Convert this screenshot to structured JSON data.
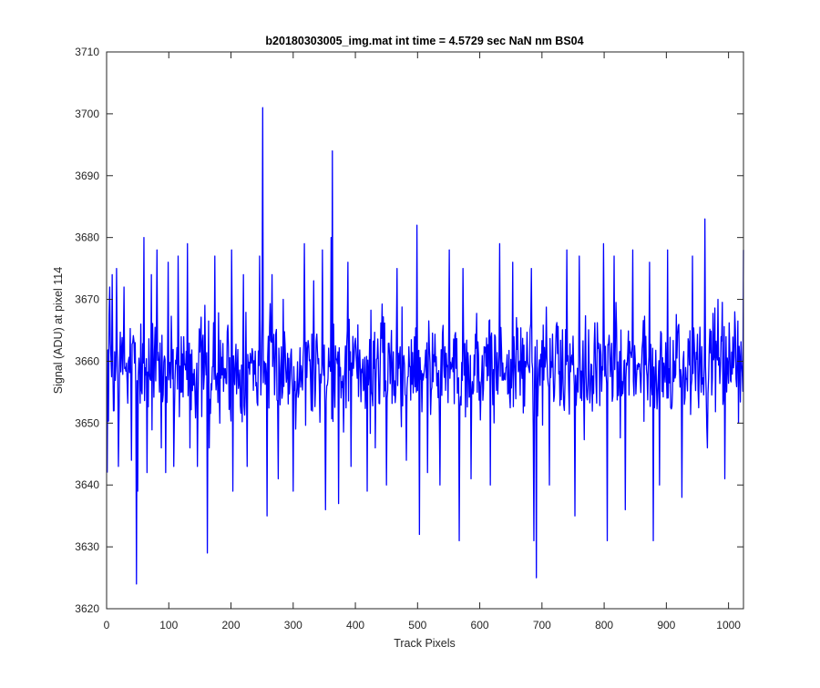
{
  "chart_data": {
    "type": "line",
    "title": "b20180303005_img.mat int time = 4.5729 sec  NaN nm BS04",
    "xlabel": "Track Pixels",
    "ylabel": "Signal (ADU) at pixel 114",
    "xlim": [
      0,
      1024
    ],
    "ylim": [
      3620,
      3710
    ],
    "xticks": [
      0,
      100,
      200,
      300,
      400,
      500,
      600,
      700,
      800,
      900,
      1000
    ],
    "yticks": [
      3620,
      3630,
      3640,
      3650,
      3660,
      3670,
      3680,
      3690,
      3700,
      3710
    ],
    "grid": false,
    "series_color": "#0000ff",
    "series": [
      {
        "x_start": 1,
        "x_step": 1,
        "noise": {
          "count": 1024,
          "mean": 3659,
          "amplitude": 8,
          "seed": 7
        },
        "features": [
          [
            1,
            3642
          ],
          [
            5,
            3672
          ],
          [
            9,
            3674
          ],
          [
            12,
            3652
          ],
          [
            16,
            3675
          ],
          [
            19,
            3643
          ],
          [
            28,
            3672
          ],
          [
            35,
            3660
          ],
          [
            40,
            3644
          ],
          [
            46,
            3663
          ],
          [
            48,
            3624
          ],
          [
            50,
            3639
          ],
          [
            55,
            3666
          ],
          [
            60,
            3680
          ],
          [
            65,
            3642
          ],
          [
            72,
            3674
          ],
          [
            81,
            3678
          ],
          [
            88,
            3646
          ],
          [
            95,
            3642
          ],
          [
            99,
            3676
          ],
          [
            108,
            3643
          ],
          [
            115,
            3677
          ],
          [
            130,
            3679
          ],
          [
            134,
            3646
          ],
          [
            146,
            3643
          ],
          [
            159,
            3660
          ],
          [
            162,
            3629
          ],
          [
            165,
            3646
          ],
          [
            174,
            3677
          ],
          [
            182,
            3650
          ],
          [
            201,
            3678
          ],
          [
            203,
            3639
          ],
          [
            220,
            3674
          ],
          [
            226,
            3643
          ],
          [
            246,
            3677
          ],
          [
            251,
            3701
          ],
          [
            253,
            3660
          ],
          [
            258,
            3635
          ],
          [
            266,
            3674
          ],
          [
            276,
            3641
          ],
          [
            284,
            3670
          ],
          [
            300,
            3639
          ],
          [
            318,
            3679
          ],
          [
            333,
            3673
          ],
          [
            347,
            3678
          ],
          [
            352,
            3636
          ],
          [
            361,
            3680
          ],
          [
            363,
            3694
          ],
          [
            365,
            3666
          ],
          [
            373,
            3637
          ],
          [
            388,
            3676
          ],
          [
            393,
            3643
          ],
          [
            419,
            3639
          ],
          [
            432,
            3646
          ],
          [
            450,
            3640
          ],
          [
            467,
            3675
          ],
          [
            482,
            3644
          ],
          [
            499,
            3682
          ],
          [
            503,
            3632
          ],
          [
            516,
            3642
          ],
          [
            536,
            3640
          ],
          [
            551,
            3678
          ],
          [
            567,
            3631
          ],
          [
            573,
            3675
          ],
          [
            586,
            3641
          ],
          [
            617,
            3640
          ],
          [
            632,
            3679
          ],
          [
            653,
            3676
          ],
          [
            683,
            3675
          ],
          [
            687,
            3631
          ],
          [
            691,
            3625
          ],
          [
            712,
            3640
          ],
          [
            740,
            3678
          ],
          [
            753,
            3635
          ],
          [
            760,
            3677
          ],
          [
            799,
            3679
          ],
          [
            805,
            3631
          ],
          [
            816,
            3677
          ],
          [
            834,
            3636
          ],
          [
            846,
            3678
          ],
          [
            873,
            3676
          ],
          [
            879,
            3631
          ],
          [
            889,
            3640
          ],
          [
            902,
            3678
          ],
          [
            925,
            3638
          ],
          [
            942,
            3677
          ],
          [
            962,
            3683
          ],
          [
            966,
            3646
          ],
          [
            983,
            3670
          ],
          [
            994,
            3641
          ],
          [
            1010,
            3668
          ],
          [
            1016,
            3650
          ],
          [
            1024,
            3678
          ]
        ]
      }
    ]
  }
}
